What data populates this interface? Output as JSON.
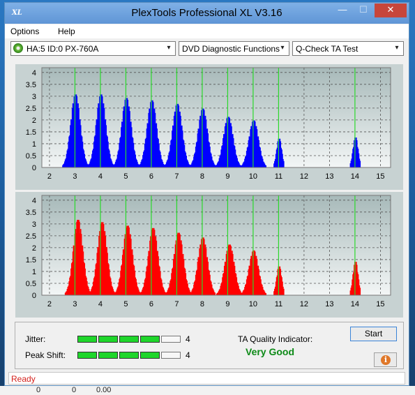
{
  "window": {
    "title": "PlexTools Professional XL V3.16",
    "app_icon_text": "XL"
  },
  "titlebar_buttons": {
    "minimize": "—",
    "maximize": "☐",
    "close": "✕"
  },
  "menu": {
    "items": [
      "Options",
      "Help"
    ]
  },
  "toolbar": {
    "drive": "HA:5 ID:0  PX-760A",
    "function": "DVD Diagnostic Functions",
    "test": "Q-Check TA Test"
  },
  "colors": {
    "upper_bars": "#0000ff",
    "lower_bars": "#ff0000",
    "green_lines": "#2bd92b",
    "plot_bg": "#c9d4d4",
    "rating": "#0d8a17",
    "status": "#d4201b"
  },
  "chart_data": [
    {
      "type": "bar",
      "name": "upper",
      "color": "#0000ff",
      "ylim": [
        0,
        4.2
      ],
      "yticks": [
        "4",
        "3.5",
        "3",
        "2.5",
        "2",
        "1.5",
        "1",
        "0.5",
        "0"
      ],
      "xticks": [
        "2",
        "3",
        "4",
        "5",
        "6",
        "7",
        "8",
        "9",
        "10",
        "11",
        "12",
        "13",
        "14",
        "15"
      ],
      "xlim": [
        1.7,
        15.4
      ],
      "green_lines_x": [
        3,
        4,
        5,
        6,
        7,
        8,
        9,
        10,
        11,
        14
      ],
      "peaks": [
        {
          "x": 3.0,
          "peak": 3.1
        },
        {
          "x": 4.0,
          "peak": 3.1
        },
        {
          "x": 5.0,
          "peak": 2.95
        },
        {
          "x": 6.0,
          "peak": 2.85
        },
        {
          "x": 7.0,
          "peak": 2.7
        },
        {
          "x": 8.0,
          "peak": 2.5
        },
        {
          "x": 9.0,
          "peak": 2.15
        },
        {
          "x": 10.0,
          "peak": 2.0
        },
        {
          "x": 11.0,
          "peak": 1.25
        },
        {
          "x": 14.0,
          "peak": 1.3
        }
      ]
    },
    {
      "type": "bar",
      "name": "lower",
      "color": "#ff0000",
      "ylim": [
        0,
        4.2
      ],
      "yticks": [
        "4",
        "3.5",
        "3",
        "2.5",
        "2",
        "1.5",
        "1",
        "0.5",
        "0"
      ],
      "xticks": [
        "2",
        "3",
        "4",
        "5",
        "6",
        "7",
        "8",
        "9",
        "10",
        "11",
        "12",
        "13",
        "14",
        "15"
      ],
      "xlim": [
        1.7,
        15.4
      ],
      "green_lines_x": [
        3,
        4,
        5,
        6,
        7,
        8,
        9,
        10,
        11,
        14
      ],
      "peaks": [
        {
          "x": 3.1,
          "peak": 3.2
        },
        {
          "x": 4.05,
          "peak": 3.1
        },
        {
          "x": 5.05,
          "peak": 2.95
        },
        {
          "x": 6.05,
          "peak": 2.85
        },
        {
          "x": 7.05,
          "peak": 2.65
        },
        {
          "x": 8.0,
          "peak": 2.45
        },
        {
          "x": 9.05,
          "peak": 2.15
        },
        {
          "x": 10.0,
          "peak": 1.9
        },
        {
          "x": 11.0,
          "peak": 1.25
        },
        {
          "x": 14.0,
          "peak": 1.45
        }
      ]
    }
  ],
  "metrics": {
    "jitter_label": "Jitter:",
    "jitter_value": "4",
    "jitter_level": 4,
    "peak_shift_label": "Peak Shift:",
    "peak_shift_value": "4",
    "peak_shift_level": 4,
    "max_level": 5
  },
  "ta_quality": {
    "label": "TA Quality Indicator:",
    "value": "Very Good"
  },
  "buttons": {
    "start": "Start",
    "info_icon_glyph": "i"
  },
  "status": {
    "text": "Ready"
  },
  "background_strip": {
    "values": [
      "0",
      "0",
      "0.00"
    ]
  }
}
